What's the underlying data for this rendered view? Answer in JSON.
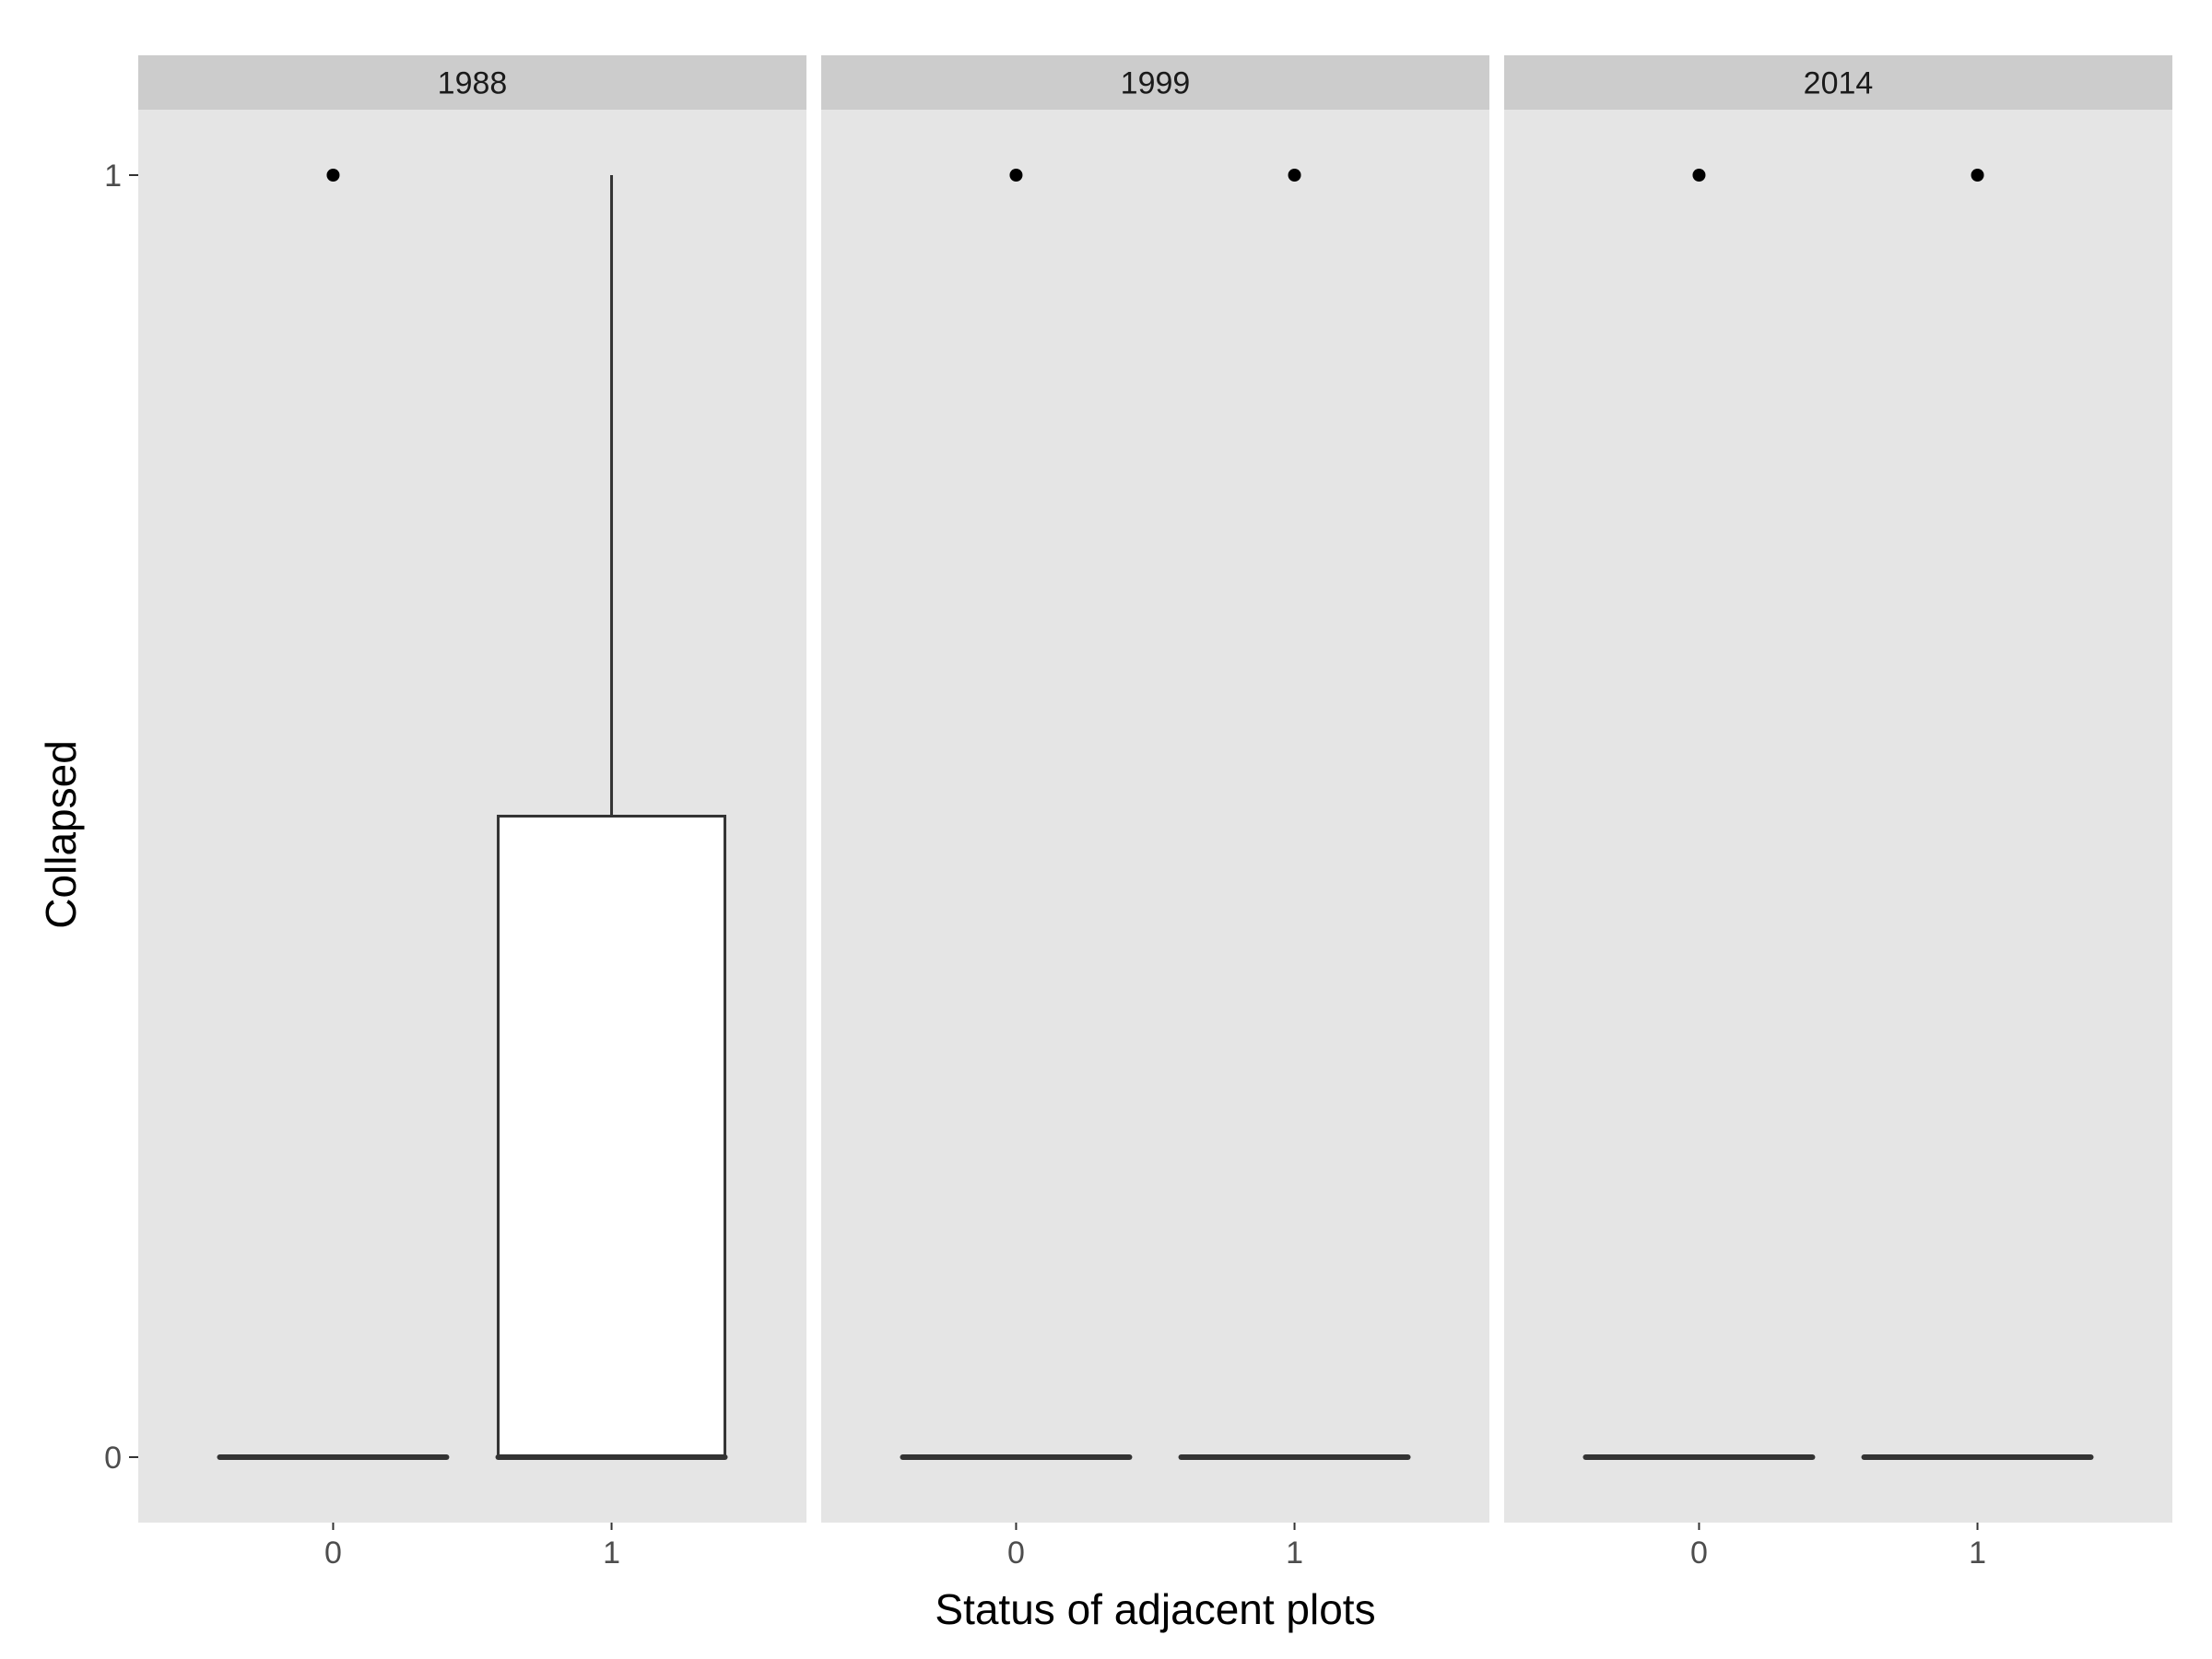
{
  "chart_data": {
    "type": "boxplot",
    "facet_by": "year",
    "xlabel": "Status of adjacent plots",
    "ylabel": "Collapsed",
    "ylim": [
      -0.05,
      1.05
    ],
    "y_ticks": [
      0,
      1
    ],
    "categories": [
      "0",
      "1"
    ],
    "colors": {
      "panel_bg": "#e5e5e5",
      "strip_bg": "#cccccc",
      "box_fill": "#ffffff",
      "line": "#333333",
      "outlier": "#000000"
    },
    "facets": [
      {
        "label": "1988",
        "boxes": [
          {
            "category": "0",
            "min": 0,
            "q1": 0,
            "median": 0,
            "q3": 0,
            "max": 0,
            "outliers": [
              1
            ]
          },
          {
            "category": "1",
            "min": 0,
            "q1": 0,
            "median": 0,
            "q3": 0.5,
            "max": 1,
            "outliers": []
          }
        ]
      },
      {
        "label": "1999",
        "boxes": [
          {
            "category": "0",
            "min": 0,
            "q1": 0,
            "median": 0,
            "q3": 0,
            "max": 0,
            "outliers": [
              1
            ]
          },
          {
            "category": "1",
            "min": 0,
            "q1": 0,
            "median": 0,
            "q3": 0,
            "max": 0,
            "outliers": [
              1
            ]
          }
        ]
      },
      {
        "label": "2014",
        "boxes": [
          {
            "category": "0",
            "min": 0,
            "q1": 0,
            "median": 0,
            "q3": 0,
            "max": 0,
            "outliers": [
              1
            ]
          },
          {
            "category": "1",
            "min": 0,
            "q1": 0,
            "median": 0,
            "q3": 0,
            "max": 0,
            "outliers": [
              1
            ]
          }
        ]
      }
    ]
  }
}
